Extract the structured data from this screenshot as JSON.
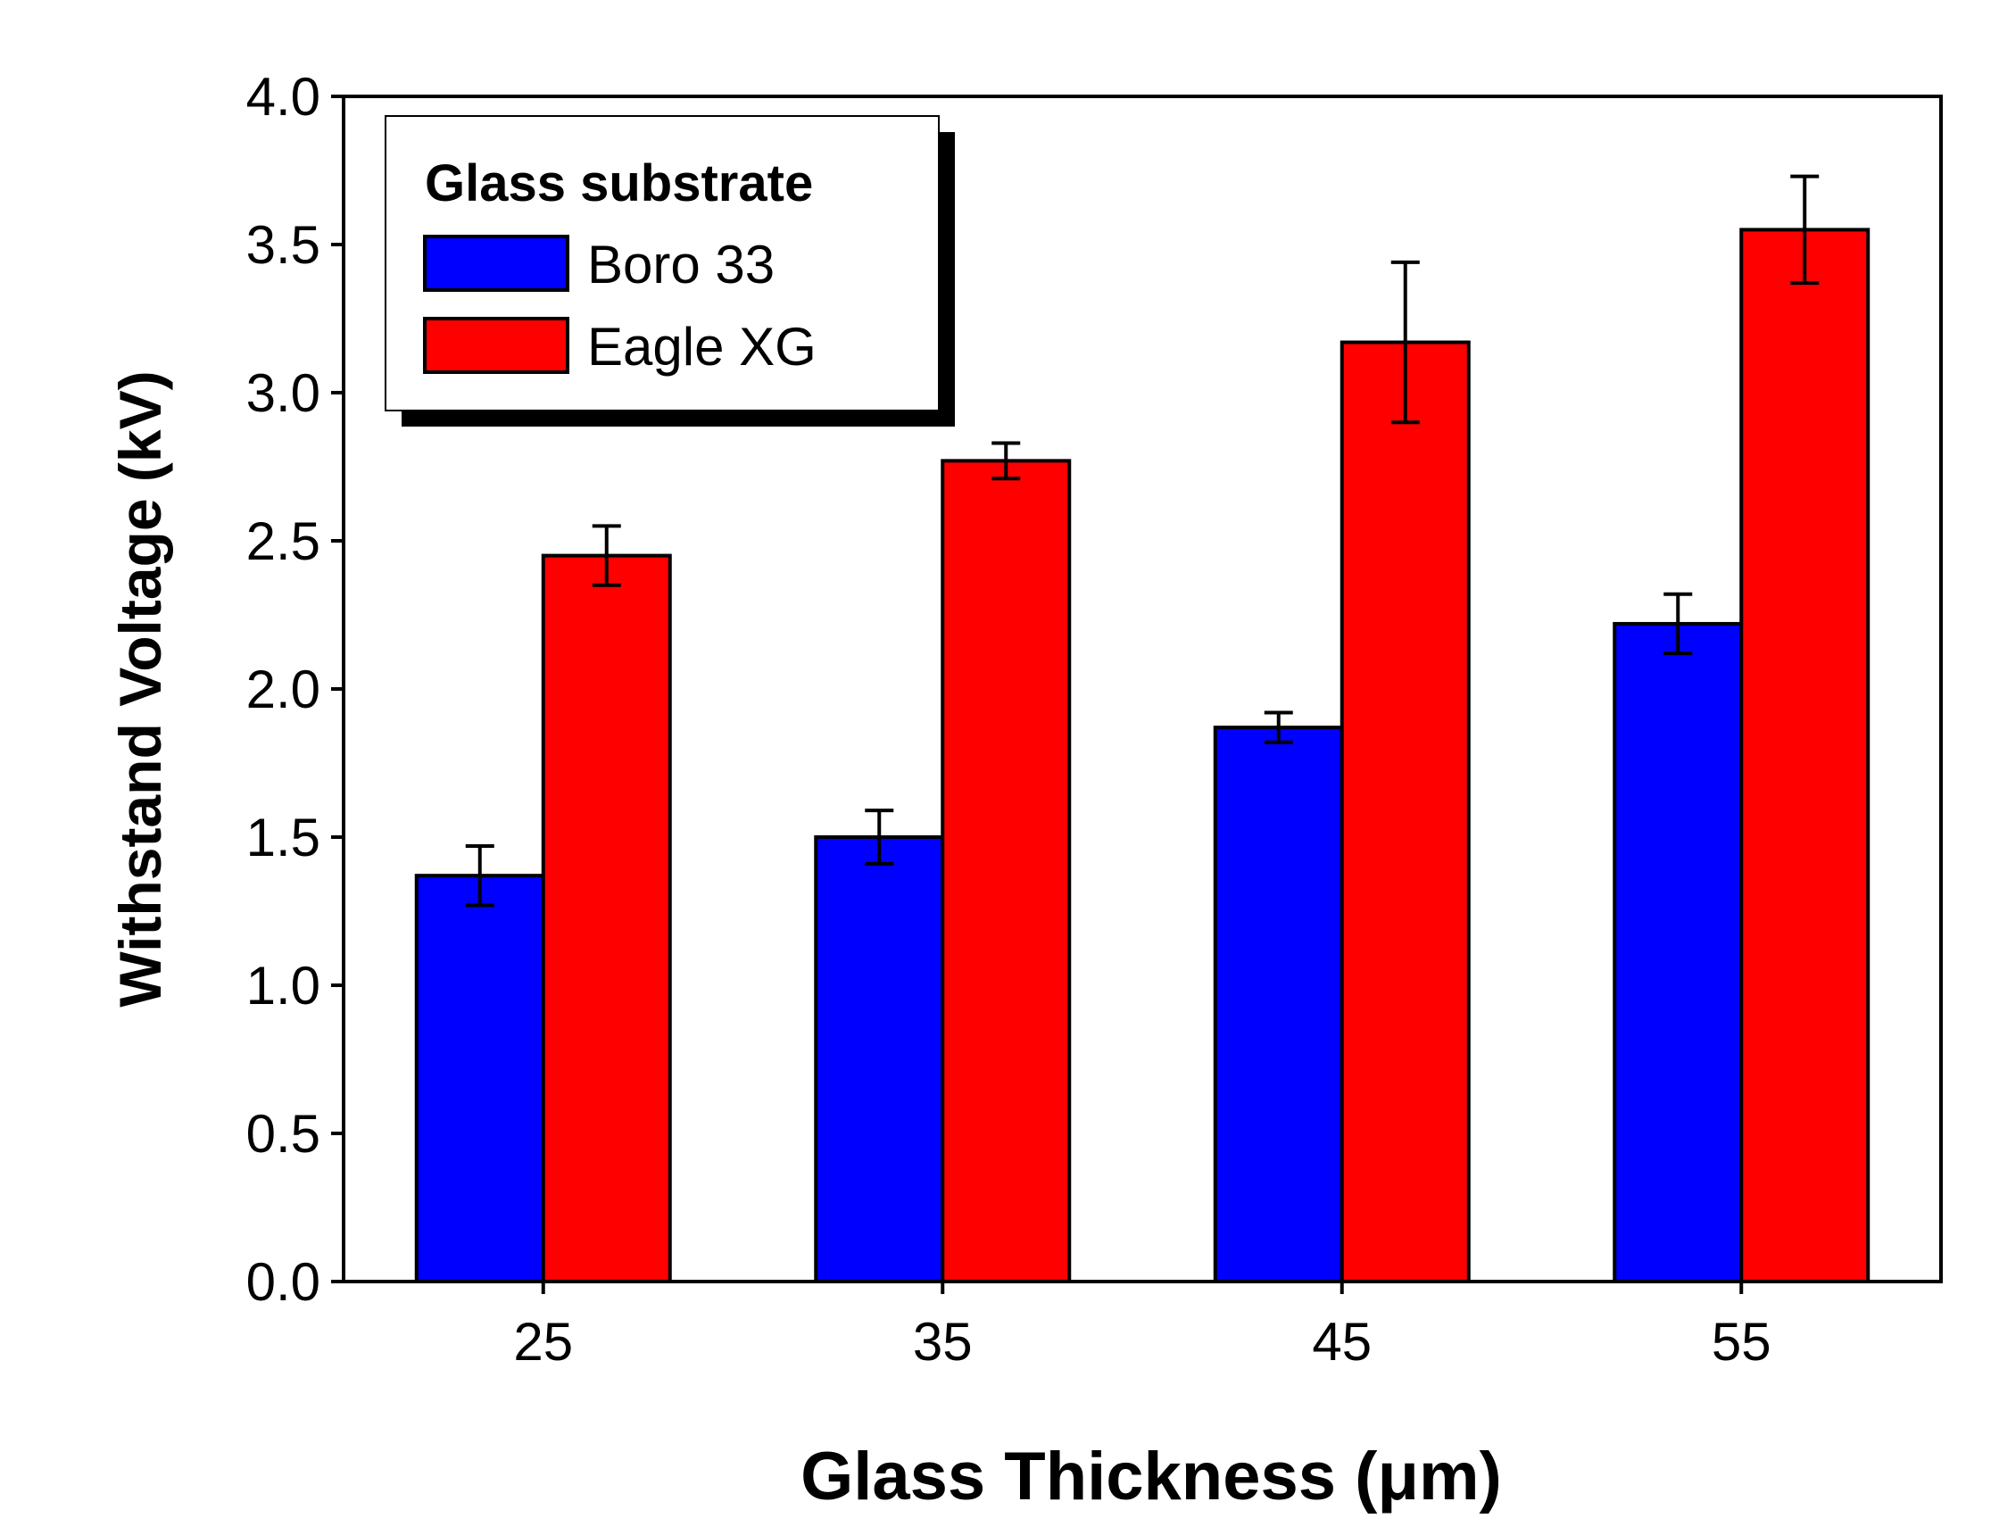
{
  "chart_data": {
    "type": "bar",
    "xlabel": "Glass Thickness (μm)",
    "ylabel": "Withstand Voltage (kV)",
    "categories": [
      "25",
      "35",
      "45",
      "55"
    ],
    "ylim": [
      0.0,
      4.0
    ],
    "yticks": [
      "0.0",
      "0.5",
      "1.0",
      "1.5",
      "2.0",
      "2.5",
      "3.0",
      "3.5",
      "4.0"
    ],
    "legend": {
      "title": "Glass substrate",
      "position": "top-left"
    },
    "series": [
      {
        "name": "Boro 33",
        "color": "#0000ff",
        "values": [
          1.37,
          1.5,
          1.87,
          2.22
        ],
        "errors": [
          0.1,
          0.09,
          0.05,
          0.1
        ]
      },
      {
        "name": "Eagle XG",
        "color": "#ff0000",
        "values": [
          2.45,
          2.77,
          3.17,
          3.55
        ],
        "errors": [
          0.1,
          0.06,
          0.27,
          0.18
        ]
      }
    ]
  }
}
